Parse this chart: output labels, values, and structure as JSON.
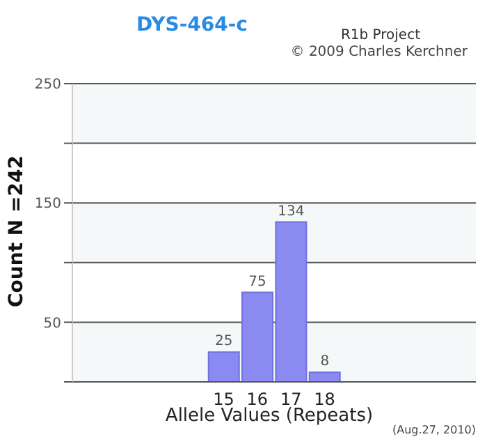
{
  "chart_data": {
    "type": "bar",
    "title": "DYS-464-c",
    "xlabel": "Allele Values (Repeats)",
    "ylabel": "Count N =242",
    "categories": [
      null,
      null,
      null,
      null,
      "15",
      "16",
      "17",
      "18",
      null,
      null,
      null,
      null
    ],
    "values": [
      null,
      null,
      null,
      null,
      25,
      75,
      134,
      8,
      null,
      null,
      null,
      null
    ],
    "color": "#8a8af0",
    "ylim": [
      0,
      250
    ],
    "yticks": [
      {
        "value": 0,
        "label": null
      },
      50,
      {
        "value": 100,
        "label": null
      },
      150,
      {
        "value": 200,
        "label": null
      },
      250
    ],
    "grid": "y",
    "data_labels": true,
    "annotations": [
      "R1b Project",
      "© 2009 Charles Kerchner",
      "(Aug.27, 2010)"
    ]
  }
}
